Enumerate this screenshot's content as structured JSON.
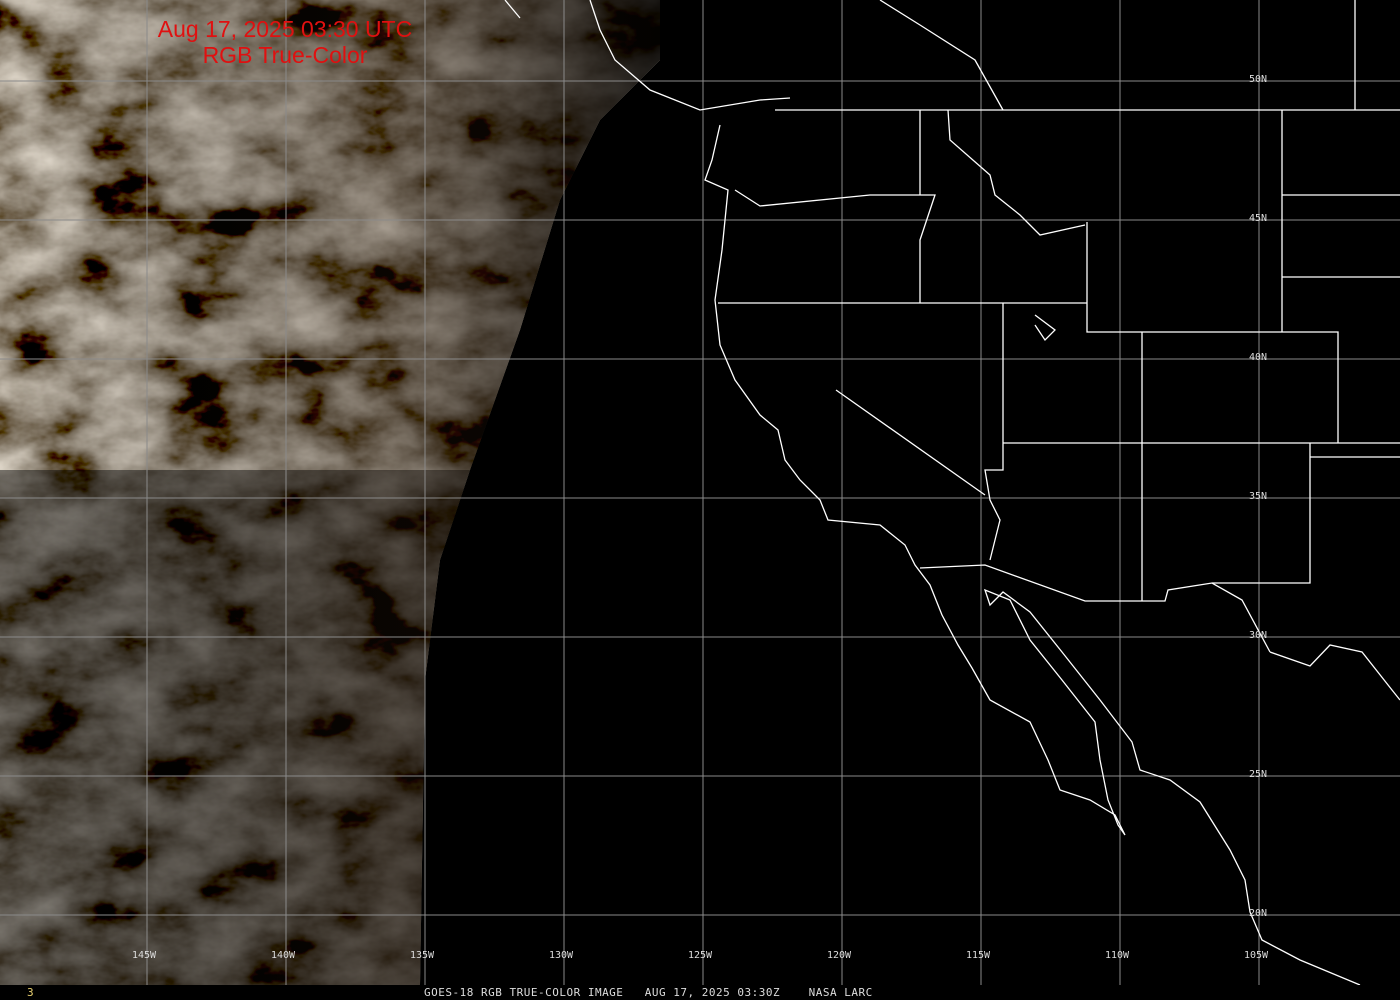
{
  "title": {
    "line1": "Aug 17, 2025 03:30 UTC",
    "line2": "RGB True-Color"
  },
  "footer": {
    "caption": "GOES-18 RGB TRUE-COLOR IMAGE   AUG 17, 2025 03:30Z    NASA LARC",
    "frame_number": "3"
  },
  "longitude_labels": [
    "145W",
    "140W",
    "135W",
    "130W",
    "125W",
    "120W",
    "115W",
    "110W",
    "105W"
  ],
  "latitude_labels": [
    "50N",
    "45N",
    "40N",
    "35N",
    "30N",
    "25N",
    "20N"
  ],
  "colors": {
    "title": "#e01010",
    "grid": "#8a8a8a",
    "coastline": "#ffffff",
    "background": "#000000"
  }
}
